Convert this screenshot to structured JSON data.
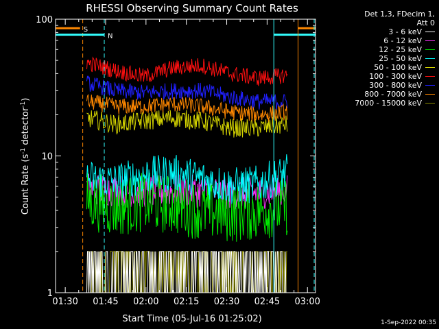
{
  "chart_data": {
    "type": "line",
    "title": "RHESSI Observing Summary Count Rates",
    "xlabel": "Start Time (05-Jul-16 01:25:02)",
    "ylabel": "Count Rate (s",
    "ylabel_sup": "-1",
    "ylabel_mid": " detector",
    "ylabel_end": ")",
    "x_range_minutes": [
      1.4,
      98
    ],
    "y_scale": "log",
    "ylim": [
      1,
      100
    ],
    "x_ticks": [
      "01:30",
      "01:45",
      "02:00",
      "02:15",
      "02:30",
      "02:45",
      "03:00"
    ],
    "x_tick_minutes": [
      5,
      20,
      35,
      50,
      65,
      80,
      95
    ],
    "y_ticks": [
      "1",
      "10",
      "100"
    ],
    "y_tick_values": [
      1,
      10,
      100
    ],
    "data_start_minute": 13.0,
    "data_end_minute": 87.5,
    "series": [
      {
        "name": "3 - 6 keV",
        "color": "#ffffff",
        "values": [
          1.5,
          1.5,
          1.6,
          1.7,
          1.6,
          1.5,
          1.5,
          1.4
        ]
      },
      {
        "name": "6 - 12 keV",
        "color": "#ff33ff",
        "values": [
          5.8,
          5.6,
          5.5,
          5.6,
          5.5,
          5.3,
          5.4,
          5.6
        ]
      },
      {
        "name": "12 - 25 keV",
        "color": "#00ee00",
        "values": [
          4.8,
          4.2,
          4.6,
          4.4,
          4.0,
          3.8,
          4.0,
          4.3
        ]
      },
      {
        "name": "25 - 50 keV",
        "color": "#00ffff",
        "values": [
          6.8,
          6.5,
          7.2,
          7.5,
          6.8,
          6.0,
          6.2,
          7.5
        ]
      },
      {
        "name": "50 - 100 keV",
        "color": "#d4d400",
        "values": [
          19,
          17,
          18,
          19,
          18,
          16,
          16,
          17
        ]
      },
      {
        "name": "100 - 300 keV",
        "color": "#ff1010",
        "values": [
          48,
          42,
          38,
          44,
          46,
          40,
          37,
          39
        ]
      },
      {
        "name": "300 - 800 keV",
        "color": "#2020ff",
        "values": [
          34,
          30,
          29,
          30,
          30,
          27,
          25,
          25
        ]
      },
      {
        "name": "800 - 7000 keV",
        "color": "#ff8800",
        "values": [
          25,
          23,
          23,
          24,
          23,
          21,
          20,
          21
        ]
      },
      {
        "name": "7000 - 15000 keV",
        "color": "#8c8c00",
        "values": [
          1.5,
          1.5,
          1.6,
          1.7,
          1.6,
          1.5,
          1.5,
          1.4
        ]
      }
    ],
    "markers": [
      {
        "label": "S",
        "color": "#ff8800",
        "level": 86,
        "bar_minutes": [
          1.4,
          10.5
        ],
        "line_minute": 11.5,
        "line_style": "dashed"
      },
      {
        "label": "N",
        "color": "#33ffff",
        "level": 77,
        "bar_minutes": [
          1.4,
          19.5
        ],
        "line_minute": 19.5,
        "line_style": "dashed"
      },
      {
        "label": "",
        "color": "#33ffff",
        "level": 77,
        "bar_minutes": [
          82.5,
          98
        ],
        "line_minute": 82.5,
        "line_style": "solid"
      },
      {
        "label": "",
        "color": "#ff8800",
        "level": 86,
        "bar_minutes": [
          91.5,
          98
        ],
        "line_minute": 91.5,
        "line_style": "solid"
      },
      {
        "label": "",
        "color": "#33ffff",
        "level": 77,
        "bar_minutes": [
          97.5,
          97.5
        ],
        "line_minute": 97.5,
        "line_style": "dashed"
      }
    ]
  },
  "legend": {
    "header": [
      "Det 1,3, FDecim 1,",
      "Att 0"
    ],
    "entries": [
      {
        "label": "3 - 6 keV",
        "color": "#ffffff"
      },
      {
        "label": "6 - 12 keV",
        "color": "#ff33ff"
      },
      {
        "label": "12 - 25 keV",
        "color": "#00ee00"
      },
      {
        "label": "25 - 50 keV",
        "color": "#00ffff"
      },
      {
        "label": "50 - 100 keV",
        "color": "#d4d400"
      },
      {
        "label": "100 - 300 keV",
        "color": "#ff1010"
      },
      {
        "label": "300 - 800 keV",
        "color": "#2020ff"
      },
      {
        "label": "800 - 7000 keV",
        "color": "#ff8800"
      },
      {
        "label": "7000 - 15000 keV",
        "color": "#8c8c00"
      }
    ]
  },
  "timestamp": "1-Sep-2022 00:35"
}
